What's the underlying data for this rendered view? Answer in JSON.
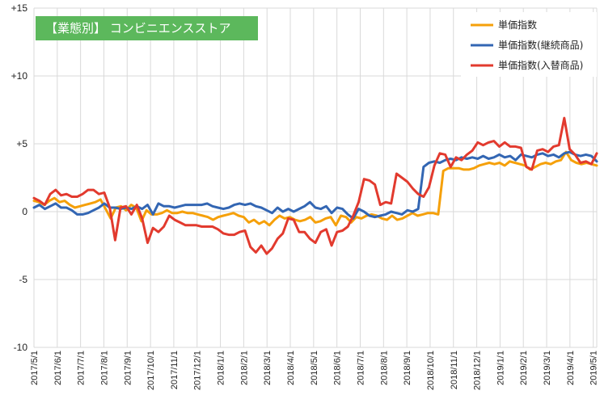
{
  "chart_data": {
    "type": "line",
    "title": "【業態別】 コンビニエンスストア",
    "badge_color": "#5cb85c",
    "yticks": [
      "+15",
      "+10",
      "+5",
      "0",
      "-5",
      "-10"
    ],
    "ylim": [
      -10,
      15
    ],
    "grid": true,
    "legend_position": "top-right",
    "xticks": [
      "2017/5/1",
      "2017/6/1",
      "2017/7/1",
      "2017/8/1",
      "2017/9/1",
      "2017/10/1",
      "2017/11/1",
      "2017/12/1",
      "2018/1/1",
      "2018/2/1",
      "2018/3/1",
      "2018/4/1",
      "2018/5/1",
      "2018/6/1",
      "2018/7/1",
      "2018/8/1",
      "2018/9/1",
      "2018/10/1",
      "2018/11/1",
      "2018/12/1",
      "2019/1/1",
      "2019/2/1",
      "2019/3/1",
      "2019/4/1",
      "2019/5/1"
    ],
    "series": [
      {
        "name": "単価指数",
        "color": "#f5a00a",
        "values": [
          0.8,
          0.7,
          0.5,
          0.8,
          1.0,
          0.7,
          0.8,
          0.5,
          0.3,
          0.4,
          0.5,
          0.6,
          0.7,
          0.9,
          0.2,
          -0.5,
          0.3,
          0.4,
          0.1,
          0.5,
          0.3,
          -0.7,
          0.1,
          -0.2,
          -0.2,
          -0.1,
          0.1,
          -0.1,
          -0.1,
          0.0,
          -0.1,
          -0.1,
          -0.2,
          -0.3,
          -0.4,
          -0.6,
          -0.4,
          -0.3,
          -0.2,
          -0.1,
          -0.3,
          -0.4,
          -0.8,
          -0.6,
          -0.9,
          -0.7,
          -1.0,
          -0.6,
          -0.3,
          -0.5,
          -0.4,
          -0.6,
          -0.7,
          -0.6,
          -0.4,
          -0.8,
          -0.7,
          -0.5,
          -0.4,
          -1.0,
          -0.3,
          -0.4,
          -0.8,
          -0.4,
          -0.5,
          -0.3,
          -0.2,
          -0.3,
          -0.5,
          -0.6,
          -0.3,
          -0.6,
          -0.5,
          -0.3,
          -0.1,
          -0.3,
          -0.2,
          -0.1,
          -0.1,
          -0.2,
          3.0,
          3.2,
          3.2,
          3.2,
          3.1,
          3.1,
          3.2,
          3.4,
          3.5,
          3.6,
          3.5,
          3.6,
          3.4,
          3.7,
          3.6,
          3.5,
          3.4,
          3.1,
          3.3,
          3.5,
          3.6,
          3.5,
          3.7,
          3.8,
          4.4,
          3.8,
          3.6,
          3.5,
          3.6,
          3.5,
          3.4
        ]
      },
      {
        "name": "単価指数(継続商品)",
        "color": "#3366b3",
        "values": [
          0.3,
          0.5,
          0.2,
          0.4,
          0.6,
          0.3,
          0.3,
          0.1,
          -0.2,
          -0.2,
          -0.1,
          0.1,
          0.3,
          0.6,
          0.3,
          0.3,
          0.2,
          0.3,
          0.2,
          0.4,
          0.2,
          0.5,
          -0.2,
          0.6,
          0.4,
          0.4,
          0.3,
          0.4,
          0.5,
          0.5,
          0.5,
          0.5,
          0.6,
          0.4,
          0.3,
          0.2,
          0.3,
          0.5,
          0.6,
          0.5,
          0.6,
          0.4,
          0.3,
          0.1,
          -0.1,
          0.3,
          0.0,
          0.2,
          0.0,
          0.2,
          0.4,
          0.7,
          0.3,
          0.2,
          0.4,
          -0.1,
          0.3,
          0.2,
          -0.2,
          -0.5,
          0.2,
          0.0,
          -0.3,
          -0.4,
          -0.3,
          -0.2,
          0.0,
          -0.1,
          -0.2,
          0.1,
          0.0,
          0.2,
          3.3,
          3.6,
          3.7,
          3.6,
          3.8,
          3.9,
          3.8,
          4.0,
          3.9,
          4.0,
          3.9,
          4.1,
          3.9,
          4.0,
          4.2,
          4.0,
          4.1,
          3.8,
          4.2,
          4.1,
          4.0,
          4.2,
          4.3,
          4.1,
          4.2,
          4.0,
          4.3,
          4.4,
          4.2,
          4.1,
          4.2,
          4.1,
          3.7
        ]
      },
      {
        "name": "単価指数(入替商品)",
        "color": "#e23a2e",
        "values": [
          1.0,
          0.8,
          0.5,
          1.3,
          1.6,
          1.2,
          1.3,
          1.1,
          1.1,
          1.3,
          1.6,
          1.6,
          1.3,
          1.4,
          0.3,
          -2.1,
          0.3,
          0.4,
          -0.2,
          0.5,
          -0.5,
          -2.3,
          -1.2,
          -1.5,
          -1.1,
          -0.3,
          -0.6,
          -0.8,
          -1.0,
          -1.0,
          -1.0,
          -1.1,
          -1.1,
          -1.1,
          -1.3,
          -1.6,
          -1.7,
          -1.7,
          -1.5,
          -1.4,
          -2.6,
          -3.0,
          -2.5,
          -3.1,
          -2.7,
          -2.0,
          -1.6,
          -0.5,
          -0.6,
          -1.5,
          -1.5,
          -2.0,
          -2.3,
          -1.5,
          -1.3,
          -2.5,
          -1.5,
          -1.4,
          -1.1,
          -0.3,
          0.7,
          2.4,
          2.3,
          2.0,
          0.5,
          0.7,
          0.6,
          2.8,
          2.5,
          2.2,
          1.7,
          1.3,
          1.1,
          1.8,
          3.4,
          4.3,
          4.2,
          3.3,
          4.0,
          3.8,
          4.2,
          4.5,
          5.1,
          4.9,
          5.1,
          5.2,
          4.8,
          5.1,
          4.8,
          4.8,
          4.7,
          3.3,
          3.1,
          4.5,
          4.6,
          4.4,
          4.8,
          4.9,
          6.9,
          4.6,
          4.2,
          3.6,
          3.7,
          3.5,
          4.3
        ]
      }
    ]
  }
}
